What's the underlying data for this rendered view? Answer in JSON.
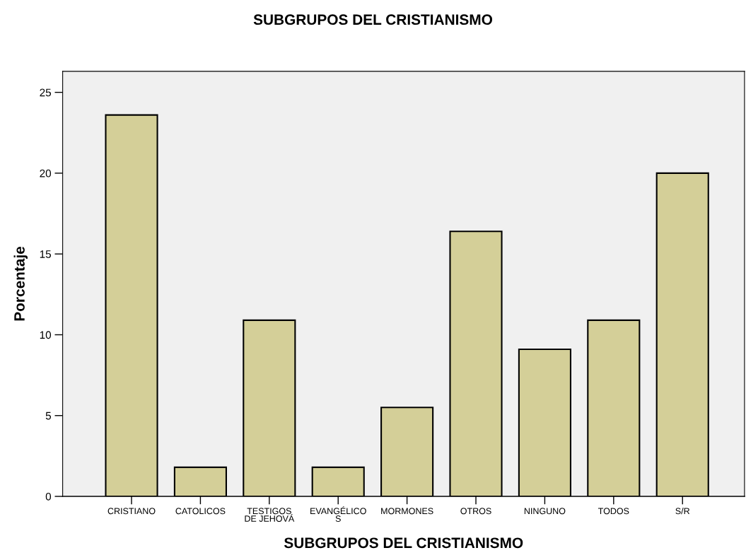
{
  "chart_data": {
    "type": "bar",
    "title": "SUBGRUPOS DEL CRISTIANISMO",
    "xlabel": "SUBGRUPOS DEL CRISTIANISMO",
    "ylabel": "Porcentaje",
    "categories": [
      "CRISTIANO",
      "CATOLICOS",
      "TESTIGOS\nDE JEHOVÁ",
      "EVANGÉLICO\nS",
      "MORMONES",
      "OTROS",
      "NINGUNO",
      "TODOS",
      "S/R"
    ],
    "values": [
      23.6,
      1.8,
      10.9,
      1.8,
      5.5,
      16.4,
      9.1,
      10.9,
      20.0
    ],
    "color": "#d4cf98",
    "ylim": [
      0,
      26.3
    ],
    "yticks": [
      0,
      5,
      10,
      15,
      20,
      25
    ],
    "grid": false,
    "legend": false
  }
}
